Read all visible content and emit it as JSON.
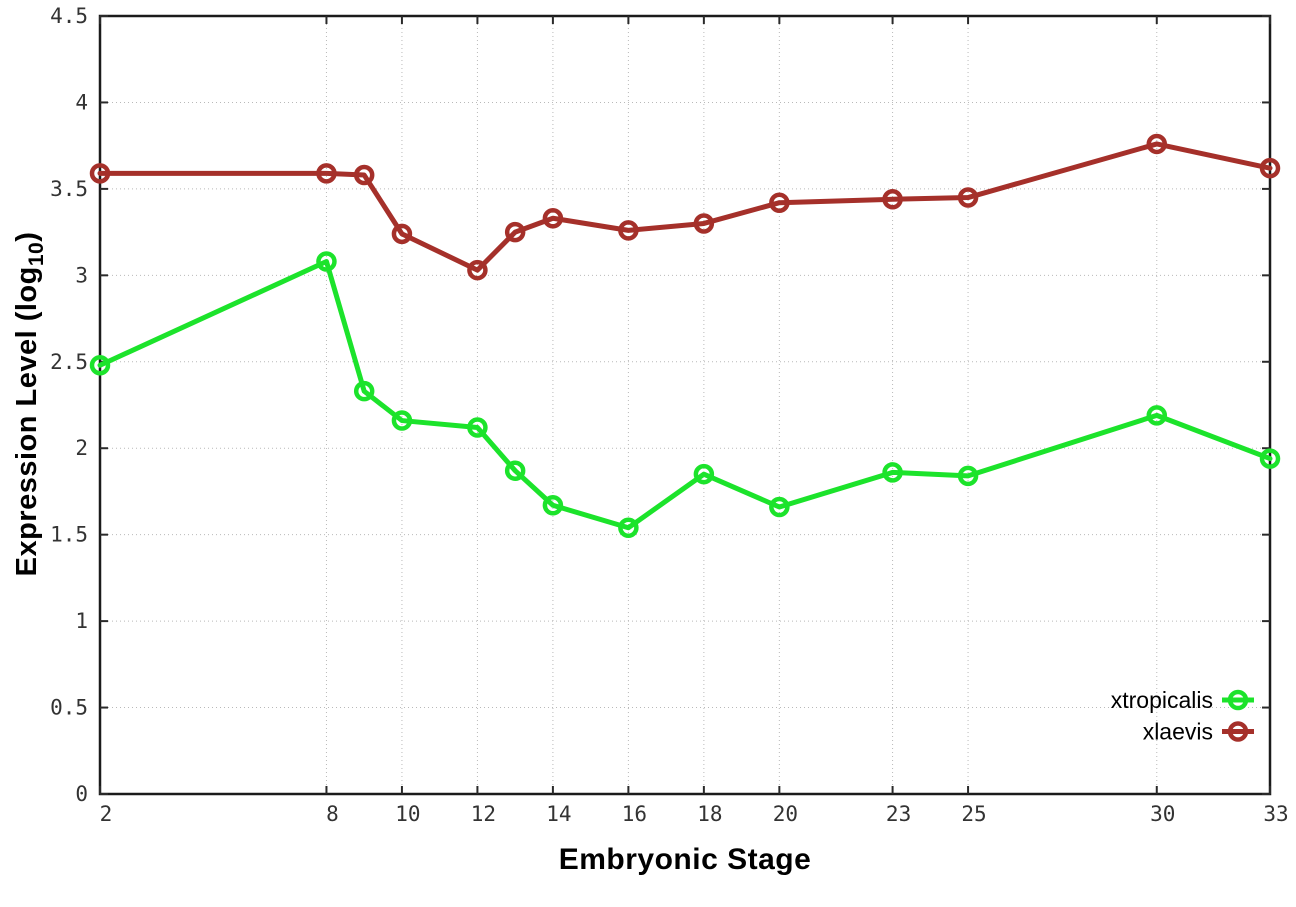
{
  "chart_data": {
    "type": "line",
    "title": "",
    "xlabel": "Embryonic Stage",
    "ylabel_prefix": "Expression Level (log",
    "ylabel_sub": "10",
    "ylabel_suffix": ")",
    "xlim": [
      2,
      33
    ],
    "ylim": [
      0,
      4.5
    ],
    "x_ticks": [
      2,
      8,
      10,
      12,
      14,
      16,
      18,
      20,
      23,
      25,
      30,
      33
    ],
    "y_ticks": [
      0,
      0.5,
      1,
      1.5,
      2,
      2.5,
      3,
      3.5,
      4,
      4.5
    ],
    "grid": true,
    "legend_position": "bottom-right",
    "x": [
      2,
      8,
      9,
      10,
      12,
      13,
      14,
      16,
      18,
      20,
      23,
      25,
      30,
      33
    ],
    "series": [
      {
        "name": "xtropicalis",
        "color": "#1ce32b",
        "values": [
          2.48,
          3.08,
          2.33,
          2.16,
          2.12,
          1.87,
          1.67,
          1.54,
          1.85,
          1.66,
          1.86,
          1.84,
          2.19,
          1.94
        ]
      },
      {
        "name": "xlaevis",
        "color": "#a5302a",
        "values": [
          3.59,
          3.59,
          3.58,
          3.24,
          3.03,
          3.25,
          3.33,
          3.26,
          3.3,
          3.42,
          3.44,
          3.45,
          3.76,
          3.62
        ]
      }
    ]
  },
  "colors": {
    "background": "#ffffff",
    "border": "#1b1b1b",
    "grid": "#b9b9b9",
    "tick": "#2a2a2a",
    "tick_label": "#333333",
    "text": "#000000"
  }
}
